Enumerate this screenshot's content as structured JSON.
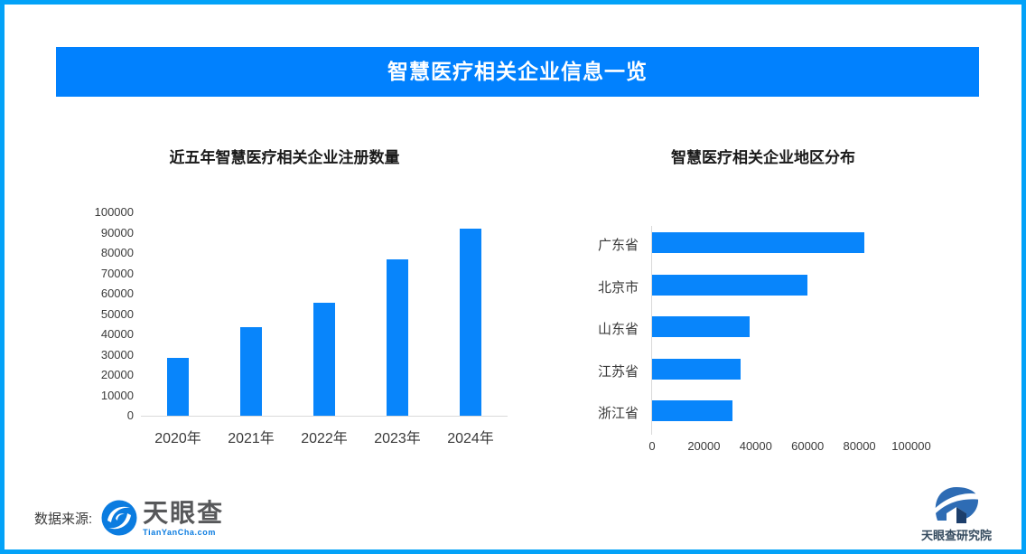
{
  "frame": {
    "border_color": "#03a2f8"
  },
  "banner": {
    "title": "智慧医疗相关企业信息一览",
    "bg_color": "#0181fe",
    "text_color": "#ffffff"
  },
  "charts_style": {
    "bar_color": "#0885fb",
    "axis_line_color": "#d9d9d9",
    "label_color": "#3a3a3a",
    "title_color": "#1a1a1a"
  },
  "chart_data": [
    {
      "type": "bar",
      "orientation": "vertical",
      "title": "近五年智慧医疗相关企业注册数量",
      "categories": [
        "2020年",
        "2021年",
        "2022年",
        "2023年",
        "2024年"
      ],
      "values": [
        28500,
        43500,
        55500,
        77000,
        92000
      ],
      "ylabel": "",
      "xlabel": "",
      "ylim": [
        0,
        100000
      ],
      "yticks": [
        0,
        10000,
        20000,
        30000,
        40000,
        50000,
        60000,
        70000,
        80000,
        90000,
        100000
      ],
      "grid": false,
      "legend": false
    },
    {
      "type": "bar",
      "orientation": "horizontal",
      "title": "智慧医疗相关企业地区分布",
      "categories": [
        "广东省",
        "北京市",
        "山东省",
        "江苏省",
        "浙江省"
      ],
      "values": [
        82000,
        60000,
        37500,
        34000,
        31000
      ],
      "ylabel": "",
      "xlabel": "",
      "xlim": [
        0,
        100000
      ],
      "xticks": [
        0,
        20000,
        40000,
        60000,
        80000,
        100000
      ],
      "grid": false,
      "legend": false
    }
  ],
  "footer": {
    "source_label": "数据来源:",
    "tianyancha": {
      "icon": "tianyancha-eye-icon",
      "wordmark": "天眼查",
      "domain": "TianYanCha.com",
      "wordmark_color": "#57585a",
      "accent_color": "#0b7ce0"
    },
    "institute": {
      "icon": "tianyancha-institute-icon",
      "wordmark": "天眼查研究院",
      "wordmark_color": "#344a5e",
      "icon_color": "#2e6cb4"
    }
  }
}
